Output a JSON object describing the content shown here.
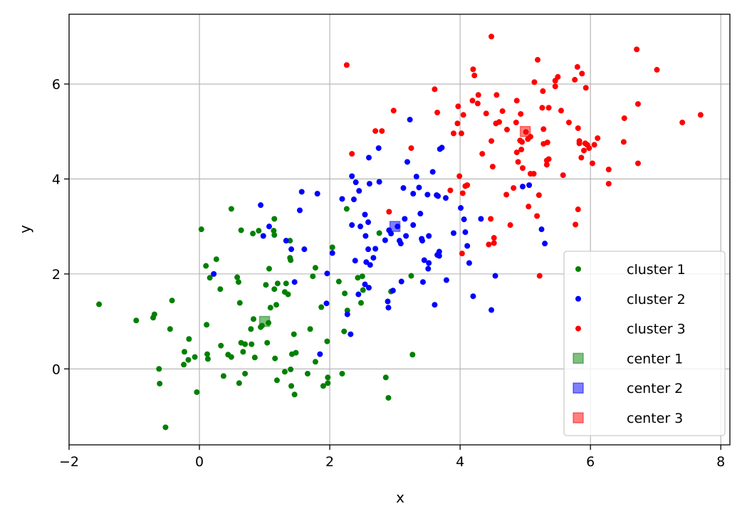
{
  "chart_data": {
    "type": "scatter",
    "title": "",
    "xlabel": "x",
    "ylabel": "y",
    "xlim": [
      -2.0,
      8.14
    ],
    "ylim": [
      -1.6,
      7.47
    ],
    "xticks": [
      "−2",
      "0",
      "2",
      "4",
      "6",
      "8"
    ],
    "xtick_values": [
      -2,
      0,
      2,
      4,
      6,
      8
    ],
    "yticks": [
      "0",
      "2",
      "4",
      "6"
    ],
    "ytick_values": [
      0,
      2,
      4,
      6
    ],
    "grid": true,
    "legend_position": "lower-right",
    "series": [
      {
        "name": "cluster 1",
        "color": "#008000",
        "marker": "circle",
        "points": [
          [
            -1.54,
            1.36
          ],
          [
            -0.97,
            1.02
          ],
          [
            -0.71,
            1.08
          ],
          [
            -0.69,
            1.15
          ],
          [
            -0.42,
            1.44
          ],
          [
            -0.45,
            0.84
          ],
          [
            -0.62,
            0.0
          ],
          [
            -0.61,
            -0.31
          ],
          [
            -0.52,
            -1.23
          ],
          [
            -0.16,
            0.63
          ],
          [
            -0.23,
            0.36
          ],
          [
            -0.17,
            0.19
          ],
          [
            -0.24,
            0.09
          ],
          [
            -0.07,
            0.25
          ],
          [
            -0.04,
            -0.49
          ],
          [
            0.03,
            2.94
          ],
          [
            0.1,
            2.17
          ],
          [
            0.11,
            0.93
          ],
          [
            0.12,
            0.31
          ],
          [
            0.13,
            0.21
          ],
          [
            0.16,
            1.92
          ],
          [
            0.26,
            2.31
          ],
          [
            0.32,
            1.68
          ],
          [
            0.33,
            0.49
          ],
          [
            0.37,
            -0.15
          ],
          [
            0.44,
            0.3
          ],
          [
            0.49,
            0.25
          ],
          [
            0.49,
            3.37
          ],
          [
            0.58,
            1.93
          ],
          [
            0.6,
            1.83
          ],
          [
            0.62,
            1.39
          ],
          [
            0.61,
            -0.3
          ],
          [
            0.64,
            0.55
          ],
          [
            0.64,
            2.92
          ],
          [
            0.67,
            0.36
          ],
          [
            0.7,
            0.52
          ],
          [
            0.7,
            -0.1
          ],
          [
            0.79,
            0.84
          ],
          [
            0.8,
            0.52
          ],
          [
            0.82,
            2.85
          ],
          [
            0.83,
            1.05
          ],
          [
            0.85,
            0.24
          ],
          [
            0.91,
            2.91
          ],
          [
            0.94,
            0.88
          ],
          [
            0.96,
            0.91
          ],
          [
            1.02,
            1.77
          ],
          [
            1.04,
            0.55
          ],
          [
            1.07,
            2.11
          ],
          [
            1.06,
            0.97
          ],
          [
            1.09,
            1.29
          ],
          [
            1.14,
            2.91
          ],
          [
            1.15,
            3.16
          ],
          [
            1.15,
            2.82
          ],
          [
            1.15,
            1.68
          ],
          [
            1.16,
            0.22
          ],
          [
            1.18,
            1.35
          ],
          [
            1.19,
            -0.24
          ],
          [
            1.2,
            1.8
          ],
          [
            1.31,
            -0.06
          ],
          [
            1.31,
            1.62
          ],
          [
            1.33,
            1.8
          ],
          [
            1.36,
            1.57
          ],
          [
            1.39,
            2.7
          ],
          [
            1.39,
            2.34
          ],
          [
            1.4,
            2.29
          ],
          [
            1.4,
            -0.01
          ],
          [
            1.41,
            -0.36
          ],
          [
            1.42,
            0.31
          ],
          [
            1.45,
            0.73
          ],
          [
            1.46,
            -0.54
          ],
          [
            1.48,
            0.34
          ],
          [
            1.66,
            -0.1
          ],
          [
            1.7,
            0.84
          ],
          [
            1.74,
            1.95
          ],
          [
            1.78,
            2.13
          ],
          [
            1.78,
            0.15
          ],
          [
            1.87,
            1.3
          ],
          [
            1.9,
            -0.36
          ],
          [
            1.96,
            0.58
          ],
          [
            1.97,
            -0.18
          ],
          [
            1.97,
            -0.3
          ],
          [
            2.04,
            2.56
          ],
          [
            2.14,
            1.84
          ],
          [
            2.19,
            -0.1
          ],
          [
            2.22,
            0.79
          ],
          [
            2.23,
            1.59
          ],
          [
            2.26,
            3.37
          ],
          [
            2.27,
            1.23
          ],
          [
            2.43,
            1.92
          ],
          [
            2.48,
            1.39
          ],
          [
            2.5,
            1.95
          ],
          [
            2.51,
            1.66
          ],
          [
            2.76,
            2.86
          ],
          [
            2.86,
            -0.18
          ],
          [
            2.9,
            -0.61
          ],
          [
            2.94,
            1.63
          ],
          [
            3.25,
            1.96
          ],
          [
            3.27,
            0.3
          ]
        ]
      },
      {
        "name": "cluster 2",
        "color": "#0000ff",
        "marker": "circle",
        "points": [
          [
            0.94,
            3.45
          ],
          [
            0.98,
            2.8
          ],
          [
            1.07,
            3.0
          ],
          [
            0.22,
            2.0
          ],
          [
            1.33,
            2.7
          ],
          [
            1.41,
            2.52
          ],
          [
            1.46,
            1.83
          ],
          [
            1.54,
            3.34
          ],
          [
            1.57,
            3.73
          ],
          [
            1.61,
            2.52
          ],
          [
            1.81,
            3.69
          ],
          [
            1.85,
            0.31
          ],
          [
            1.95,
            1.38
          ],
          [
            1.96,
            2.01
          ],
          [
            2.04,
            2.44
          ],
          [
            2.19,
            3.58
          ],
          [
            2.27,
            1.15
          ],
          [
            2.32,
            0.73
          ],
          [
            2.34,
            3.03
          ],
          [
            2.34,
            4.06
          ],
          [
            2.37,
            3.57
          ],
          [
            2.39,
            2.28
          ],
          [
            2.4,
            3.93
          ],
          [
            2.44,
            1.57
          ],
          [
            2.45,
            3.75
          ],
          [
            2.47,
            3.0
          ],
          [
            2.54,
            3.25
          ],
          [
            2.54,
            1.78
          ],
          [
            2.55,
            2.8
          ],
          [
            2.56,
            2.25
          ],
          [
            2.59,
            3.09
          ],
          [
            2.59,
            2.52
          ],
          [
            2.6,
            1.71
          ],
          [
            2.6,
            4.45
          ],
          [
            2.61,
            3.9
          ],
          [
            2.62,
            2.19
          ],
          [
            2.67,
            2.34
          ],
          [
            2.7,
            2.53
          ],
          [
            2.75,
            4.65
          ],
          [
            2.76,
            3.94
          ],
          [
            2.85,
            2.71
          ],
          [
            2.89,
            1.42
          ],
          [
            2.9,
            1.29
          ],
          [
            2.91,
            2.92
          ],
          [
            2.94,
            2.85
          ],
          [
            2.97,
            1.65
          ],
          [
            3.04,
            3.0
          ],
          [
            3.07,
            2.7
          ],
          [
            3.09,
            2.64
          ],
          [
            3.1,
            1.84
          ],
          [
            3.13,
            3.81
          ],
          [
            3.15,
            3.16
          ],
          [
            3.17,
            2.8
          ],
          [
            3.19,
            4.36
          ],
          [
            3.23,
            5.25
          ],
          [
            3.28,
            3.69
          ],
          [
            3.28,
            3.03
          ],
          [
            3.33,
            4.05
          ],
          [
            3.37,
            3.82
          ],
          [
            3.39,
            3.27
          ],
          [
            3.41,
            2.74
          ],
          [
            3.42,
            2.7
          ],
          [
            3.43,
            1.83
          ],
          [
            3.45,
            2.29
          ],
          [
            3.5,
            3.67
          ],
          [
            3.51,
            2.11
          ],
          [
            3.52,
            2.23
          ],
          [
            3.52,
            2.8
          ],
          [
            3.58,
            4.15
          ],
          [
            3.61,
            1.35
          ],
          [
            3.64,
            3.66
          ],
          [
            3.65,
            2.4
          ],
          [
            3.66,
            3.64
          ],
          [
            3.68,
            2.38
          ],
          [
            3.68,
            2.47
          ],
          [
            3.69,
            4.63
          ],
          [
            3.72,
            4.66
          ],
          [
            3.78,
            3.6
          ],
          [
            3.79,
            1.87
          ],
          [
            3.9,
            2.86
          ],
          [
            4.01,
            3.39
          ],
          [
            4.06,
            3.15
          ],
          [
            4.08,
            2.88
          ],
          [
            4.11,
            2.59
          ],
          [
            4.14,
            2.23
          ],
          [
            4.2,
            1.53
          ],
          [
            4.32,
            3.16
          ],
          [
            4.48,
            1.24
          ],
          [
            4.54,
            1.96
          ],
          [
            4.96,
            3.84
          ],
          [
            5.06,
            3.87
          ],
          [
            5.25,
            2.94
          ],
          [
            5.3,
            2.64
          ]
        ]
      },
      {
        "name": "cluster 3",
        "color": "#ff0000",
        "marker": "circle",
        "points": [
          [
            2.26,
            6.4
          ],
          [
            2.34,
            4.53
          ],
          [
            2.7,
            5.01
          ],
          [
            2.8,
            5.01
          ],
          [
            2.91,
            3.31
          ],
          [
            2.98,
            5.44
          ],
          [
            3.25,
            4.65
          ],
          [
            3.61,
            5.89
          ],
          [
            3.65,
            5.4
          ],
          [
            3.85,
            3.76
          ],
          [
            3.9,
            4.96
          ],
          [
            3.96,
            5.17
          ],
          [
            3.97,
            5.53
          ],
          [
            3.99,
            4.06
          ],
          [
            4.02,
            4.96
          ],
          [
            4.03,
            2.43
          ],
          [
            4.04,
            3.7
          ],
          [
            4.05,
            5.35
          ],
          [
            4.08,
            3.85
          ],
          [
            4.11,
            3.87
          ],
          [
            4.19,
            5.65
          ],
          [
            4.2,
            6.31
          ],
          [
            4.22,
            6.18
          ],
          [
            4.27,
            5.59
          ],
          [
            4.28,
            5.77
          ],
          [
            4.34,
            4.53
          ],
          [
            4.4,
            5.38
          ],
          [
            4.44,
            2.62
          ],
          [
            4.47,
            3.16
          ],
          [
            4.48,
            7.0
          ],
          [
            4.48,
            4.8
          ],
          [
            4.5,
            4.26
          ],
          [
            4.52,
            2.65
          ],
          [
            4.52,
            2.76
          ],
          [
            4.55,
            5.17
          ],
          [
            4.56,
            5.77
          ],
          [
            4.6,
            5.2
          ],
          [
            4.65,
            5.43
          ],
          [
            4.71,
            3.67
          ],
          [
            4.72,
            5.04
          ],
          [
            4.77,
            3.03
          ],
          [
            4.82,
            3.81
          ],
          [
            4.86,
            5.19
          ],
          [
            4.87,
            5.65
          ],
          [
            4.87,
            4.56
          ],
          [
            4.89,
            4.36
          ],
          [
            4.92,
            4.81
          ],
          [
            4.93,
            5.37
          ],
          [
            4.94,
            4.62
          ],
          [
            4.95,
            4.78
          ],
          [
            4.96,
            4.23
          ],
          [
            5.01,
            4.99
          ],
          [
            5.04,
            4.84
          ],
          [
            5.05,
            3.42
          ],
          [
            5.08,
            4.89
          ],
          [
            5.08,
            4.11
          ],
          [
            5.13,
            4.11
          ],
          [
            5.14,
            6.04
          ],
          [
            5.18,
            3.22
          ],
          [
            5.19,
            6.51
          ],
          [
            5.21,
            3.66
          ],
          [
            5.22,
            1.96
          ],
          [
            5.26,
            5.5
          ],
          [
            5.27,
            5.85
          ],
          [
            5.28,
            5.05
          ],
          [
            5.28,
            4.74
          ],
          [
            5.33,
            4.39
          ],
          [
            5.33,
            4.3
          ],
          [
            5.34,
            4.77
          ],
          [
            5.36,
            5.5
          ],
          [
            5.36,
            4.42
          ],
          [
            5.46,
            6.07
          ],
          [
            5.46,
            5.95
          ],
          [
            5.5,
            6.15
          ],
          [
            5.55,
            5.44
          ],
          [
            5.58,
            4.08
          ],
          [
            5.67,
            5.19
          ],
          [
            5.76,
            6.09
          ],
          [
            5.77,
            3.04
          ],
          [
            5.8,
            6.36
          ],
          [
            5.81,
            3.36
          ],
          [
            5.81,
            5.07
          ],
          [
            5.83,
            4.8
          ],
          [
            5.83,
            4.75
          ],
          [
            5.86,
            4.45
          ],
          [
            5.87,
            6.22
          ],
          [
            5.9,
            4.6
          ],
          [
            5.92,
            4.75
          ],
          [
            5.93,
            5.92
          ],
          [
            5.95,
            4.72
          ],
          [
            5.98,
            4.65
          ],
          [
            6.03,
            4.33
          ],
          [
            6.06,
            4.72
          ],
          [
            6.11,
            4.86
          ],
          [
            6.28,
            4.2
          ],
          [
            6.28,
            3.9
          ],
          [
            6.51,
            4.78
          ],
          [
            6.52,
            5.28
          ],
          [
            6.71,
            6.73
          ],
          [
            6.73,
            5.58
          ],
          [
            6.73,
            4.33
          ],
          [
            7.02,
            6.3
          ],
          [
            7.41,
            5.19
          ],
          [
            7.69,
            5.35
          ]
        ]
      }
    ],
    "centers": [
      {
        "name": "center 1",
        "color": "#008000",
        "marker": "square",
        "alpha": 0.5,
        "x": 1,
        "y": 1
      },
      {
        "name": "center 2",
        "color": "#0000ff",
        "marker": "square",
        "alpha": 0.5,
        "x": 3,
        "y": 3
      },
      {
        "name": "center 3",
        "color": "#ff0000",
        "marker": "square",
        "alpha": 0.5,
        "x": 5,
        "y": 5
      }
    ]
  }
}
